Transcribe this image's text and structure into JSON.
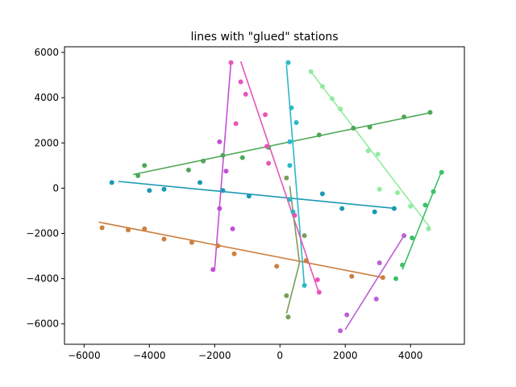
{
  "chart_data": {
    "type": "scatter",
    "title": "lines with \"glued\" stations",
    "xlabel": "",
    "ylabel": "",
    "xlim": [
      -6600,
      5650
    ],
    "ylim": [
      -6900,
      6250
    ],
    "xticks": [
      -6000,
      -4000,
      -2000,
      0,
      2000,
      4000
    ],
    "yticks": [
      -6000,
      -4000,
      -2000,
      0,
      2000,
      4000,
      6000
    ],
    "grid": false,
    "series": [
      {
        "color": "#cd7f3f",
        "line": [
          [
            -5550,
            -1500
          ],
          [
            3150,
            -3950
          ]
        ],
        "points": [
          [
            -5450,
            -1750
          ],
          [
            -4650,
            -1850
          ],
          [
            -4150,
            -1800
          ],
          [
            -3550,
            -2250
          ],
          [
            -2700,
            -2400
          ],
          [
            -1900,
            -2550
          ],
          [
            -1400,
            -2900
          ],
          [
            -100,
            -3450
          ],
          [
            800,
            -3200
          ],
          [
            2200,
            -3900
          ],
          [
            3150,
            -3950
          ]
        ]
      },
      {
        "color": "#1a99b3",
        "line": [
          [
            -4950,
            300
          ],
          [
            3550,
            -900
          ]
        ],
        "points": [
          [
            -5150,
            250
          ],
          [
            -4000,
            -100
          ],
          [
            -3550,
            -50
          ],
          [
            -2450,
            250
          ],
          [
            -1750,
            -100
          ],
          [
            -950,
            -350
          ],
          [
            1300,
            -250
          ],
          [
            1900,
            -900
          ],
          [
            2900,
            -1050
          ],
          [
            3500,
            -900
          ]
        ]
      },
      {
        "color": "#4ea857",
        "line": [
          [
            -4500,
            600
          ],
          [
            4650,
            3350
          ]
        ],
        "points": [
          [
            -4350,
            550
          ],
          [
            -4150,
            1000
          ],
          [
            -2800,
            800
          ],
          [
            -2350,
            1200
          ],
          [
            -1750,
            1450
          ],
          [
            -1150,
            1350
          ],
          [
            -350,
            1800
          ],
          [
            1200,
            2350
          ],
          [
            2250,
            2650
          ],
          [
            2750,
            2700
          ],
          [
            3800,
            3150
          ],
          [
            4600,
            3350
          ]
        ]
      },
      {
        "color": "#2bb8c8",
        "line": [
          [
            200,
            5450
          ],
          [
            750,
            -4350
          ]
        ],
        "points": [
          [
            250,
            5550
          ],
          [
            350,
            3550
          ],
          [
            500,
            2900
          ],
          [
            300,
            2050
          ],
          [
            300,
            1000
          ],
          [
            300,
            -500
          ],
          [
            400,
            -1050
          ],
          [
            750,
            -4300
          ]
        ]
      },
      {
        "color": "#e854b8",
        "line": [
          [
            -1200,
            5600
          ],
          [
            1200,
            -4650
          ]
        ],
        "points": [
          [
            -1500,
            5550
          ],
          [
            -1200,
            4700
          ],
          [
            -1050,
            4150
          ],
          [
            -1350,
            2850
          ],
          [
            -450,
            3250
          ],
          [
            -400,
            1850
          ],
          [
            -350,
            1100
          ],
          [
            450,
            -1200
          ],
          [
            1150,
            -4050
          ],
          [
            1200,
            -4600
          ]
        ]
      },
      {
        "color": "#c24fd4",
        "line": [
          [
            -1500,
            5600
          ],
          [
            -2000,
            -3550
          ]
        ],
        "points": [
          [
            -1850,
            2050
          ],
          [
            -1650,
            750
          ],
          [
            -1850,
            -900
          ],
          [
            -2050,
            -3600
          ],
          [
            -1450,
            -1800
          ]
        ]
      },
      {
        "color": "#7a9d5a",
        "line": [
          [
            300,
            100
          ],
          [
            600,
            -3300
          ],
          [
            200,
            -5550
          ]
        ],
        "points": [
          [
            200,
            450
          ],
          [
            750,
            -2100
          ],
          [
            200,
            -4750
          ],
          [
            250,
            -5700
          ]
        ]
      },
      {
        "color": "#bd5ed8",
        "line": [
          [
            2000,
            -6250
          ],
          [
            3800,
            -2100
          ]
        ],
        "points": [
          [
            1850,
            -6300
          ],
          [
            2050,
            -5600
          ],
          [
            2950,
            -4900
          ],
          [
            3050,
            -3300
          ],
          [
            3800,
            -2100
          ]
        ]
      },
      {
        "color": "#92eb9f",
        "line": [
          [
            950,
            5150
          ],
          [
            4600,
            -1750
          ]
        ],
        "points": [
          [
            950,
            5150
          ],
          [
            1300,
            4500
          ],
          [
            1600,
            3950
          ],
          [
            1850,
            3500
          ],
          [
            2700,
            1650
          ],
          [
            3000,
            1500
          ],
          [
            3050,
            -50
          ],
          [
            3600,
            -200
          ],
          [
            4000,
            -800
          ],
          [
            4550,
            -1800
          ]
        ]
      },
      {
        "color": "#3dc06a",
        "line": [
          [
            3750,
            -3600
          ],
          [
            4950,
            750
          ]
        ],
        "points": [
          [
            3550,
            -4000
          ],
          [
            3750,
            -3400
          ],
          [
            4050,
            -2200
          ],
          [
            4450,
            -750
          ],
          [
            4700,
            -150
          ],
          [
            4950,
            700
          ]
        ]
      }
    ]
  }
}
